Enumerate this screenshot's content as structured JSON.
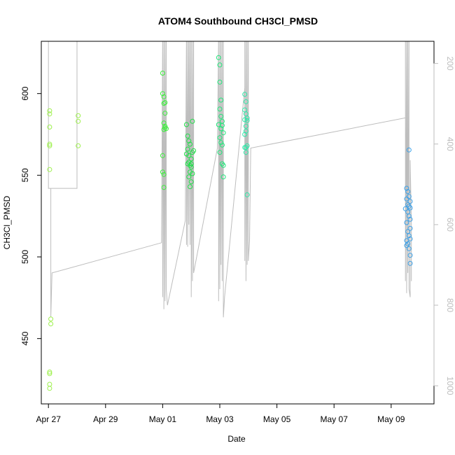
{
  "chart_data": {
    "type": "scatter",
    "title": "ATOM4 Southbound CH3Cl_PMSD",
    "xlabel": "Date",
    "ylabel": "CH3Cl_PMSD",
    "x_is_date": true,
    "xlim": [
      "2018-04-26T18:00",
      "2018-05-10T12:00"
    ],
    "ylim": [
      410,
      632
    ],
    "y_ticks": [
      450,
      500,
      550,
      600
    ],
    "x_ticks": [
      {
        "date": "2018-04-27",
        "label": "Apr 27"
      },
      {
        "date": "2018-04-29",
        "label": "Apr 29"
      },
      {
        "date": "2018-05-01",
        "label": "May 01"
      },
      {
        "date": "2018-05-03",
        "label": "May 03"
      },
      {
        "date": "2018-05-05",
        "label": "May 05"
      },
      {
        "date": "2018-05-07",
        "label": "May 07"
      },
      {
        "date": "2018-05-09",
        "label": "May 09"
      }
    ],
    "secondary_axis": {
      "side": "right",
      "color": "#bdbdbd",
      "reversed": true,
      "lim": [
        1045,
        145
      ],
      "ticks": [
        200,
        400,
        600,
        800,
        1000
      ]
    },
    "grid": false,
    "legend": "none",
    "series": [
      {
        "color": "#9cf04a",
        "points": [
          [
            "2018-04-27T01:00",
            589.5
          ],
          [
            "2018-04-27T01:00",
            587.5
          ],
          [
            "2018-04-27T01:00",
            579.5
          ],
          [
            "2018-04-27T01:00",
            569
          ],
          [
            "2018-04-27T01:00",
            568
          ],
          [
            "2018-04-27T01:00",
            553.5
          ],
          [
            "2018-04-27T02:00",
            462
          ],
          [
            "2018-04-27T02:00",
            459
          ],
          [
            "2018-04-27T01:00",
            429.5
          ],
          [
            "2018-04-27T01:00",
            428.5
          ],
          [
            "2018-04-27T01:00",
            422
          ],
          [
            "2018-04-27T01:00",
            419.5
          ],
          [
            "2018-04-28T01:00",
            586.5
          ],
          [
            "2018-04-28T01:00",
            583
          ],
          [
            "2018-04-28T01:00",
            568
          ]
        ]
      },
      {
        "color": "#3cf03c",
        "points": [
          [
            "2018-05-01T00:00",
            612.5
          ],
          [
            "2018-05-01T00:00",
            600
          ],
          [
            "2018-05-01T01:00",
            598
          ],
          [
            "2018-05-01T01:00",
            594
          ],
          [
            "2018-05-01T02:00",
            594.5
          ],
          [
            "2018-05-01T02:00",
            588
          ],
          [
            "2018-05-01T01:00",
            582
          ],
          [
            "2018-05-01T02:00",
            580
          ],
          [
            "2018-05-01T02:00",
            579
          ],
          [
            "2018-05-01T01:00",
            578
          ],
          [
            "2018-05-01T03:00",
            578.5
          ],
          [
            "2018-05-01T00:00",
            562
          ],
          [
            "2018-05-01T00:00",
            552
          ],
          [
            "2018-05-01T01:00",
            550.5
          ],
          [
            "2018-05-01T01:00",
            542.5
          ]
        ]
      },
      {
        "color": "#1ee048",
        "points": [
          [
            "2018-05-01T20:00",
            581
          ],
          [
            "2018-05-01T21:00",
            574
          ],
          [
            "2018-05-01T22:00",
            571
          ],
          [
            "2018-05-01T23:00",
            569
          ],
          [
            "2018-05-01T21:00",
            566
          ],
          [
            "2018-05-01T20:00",
            563
          ],
          [
            "2018-05-01T22:00",
            562
          ],
          [
            "2018-05-02T00:00",
            560
          ],
          [
            "2018-05-01T22:00",
            558
          ],
          [
            "2018-05-01T21:00",
            557
          ],
          [
            "2018-05-01T23:00",
            556
          ],
          [
            "2018-05-02T00:00",
            555
          ],
          [
            "2018-05-01T23:00",
            552
          ],
          [
            "2018-05-02T01:00",
            551
          ],
          [
            "2018-05-01T22:00",
            549
          ],
          [
            "2018-05-02T00:00",
            546
          ],
          [
            "2018-05-01T23:00",
            543
          ],
          [
            "2018-05-02T01:00",
            583
          ],
          [
            "2018-05-02T02:00",
            565
          ],
          [
            "2018-05-02T01:00",
            564
          ],
          [
            "2018-05-02T00:00",
            557
          ]
        ]
      },
      {
        "color": "#1ee87a",
        "points": [
          [
            "2018-05-02T23:00",
            622
          ],
          [
            "2018-05-03T00:00",
            617.5
          ],
          [
            "2018-05-03T00:00",
            607
          ],
          [
            "2018-05-03T01:00",
            596
          ],
          [
            "2018-05-03T00:00",
            590.5
          ],
          [
            "2018-05-03T01:00",
            586
          ],
          [
            "2018-05-03T02:00",
            583
          ],
          [
            "2018-05-02T23:00",
            581
          ],
          [
            "2018-05-03T02:00",
            580.5
          ],
          [
            "2018-05-03T01:00",
            578.5
          ],
          [
            "2018-05-03T03:00",
            576
          ],
          [
            "2018-05-03T00:00",
            573
          ],
          [
            "2018-05-03T01:00",
            570
          ],
          [
            "2018-05-03T02:00",
            568.5
          ],
          [
            "2018-05-03T00:00",
            564
          ],
          [
            "2018-05-03T02:00",
            557
          ],
          [
            "2018-05-03T03:00",
            556
          ],
          [
            "2018-05-03T03:00",
            549
          ]
        ]
      },
      {
        "color": "#2ee8a8",
        "points": [
          [
            "2018-05-03T21:00",
            599.5
          ],
          [
            "2018-05-03T22:00",
            595
          ],
          [
            "2018-05-03T21:00",
            590
          ],
          [
            "2018-05-03T22:00",
            587.5
          ],
          [
            "2018-05-03T23:00",
            585
          ],
          [
            "2018-05-03T21:00",
            584
          ],
          [
            "2018-05-03T23:00",
            583.5
          ],
          [
            "2018-05-03T22:00",
            580
          ],
          [
            "2018-05-03T22:00",
            577
          ],
          [
            "2018-05-03T21:00",
            575
          ],
          [
            "2018-05-03T23:00",
            568
          ],
          [
            "2018-05-03T22:00",
            567
          ],
          [
            "2018-05-03T21:00",
            567
          ],
          [
            "2018-05-03T22:00",
            564
          ],
          [
            "2018-05-03T23:00",
            538
          ]
        ]
      },
      {
        "color": "#3aa0e8",
        "points": [
          [
            "2018-05-09T15:00",
            565.5
          ],
          [
            "2018-05-09T13:00",
            542
          ],
          [
            "2018-05-09T14:00",
            540
          ],
          [
            "2018-05-09T15:00",
            537
          ],
          [
            "2018-05-09T13:00",
            535.5
          ],
          [
            "2018-05-09T16:00",
            534
          ],
          [
            "2018-05-09T14:00",
            532
          ],
          [
            "2018-05-09T15:00",
            531
          ],
          [
            "2018-05-09T12:00",
            529.5
          ],
          [
            "2018-05-09T16:00",
            530
          ],
          [
            "2018-05-09T14:00",
            527.5
          ],
          [
            "2018-05-09T15:00",
            525
          ],
          [
            "2018-05-09T16:00",
            523
          ],
          [
            "2018-05-09T13:00",
            521
          ],
          [
            "2018-05-09T16:00",
            517.5
          ],
          [
            "2018-05-09T14:00",
            515.5
          ],
          [
            "2018-05-09T15:00",
            513
          ],
          [
            "2018-05-09T16:00",
            511
          ],
          [
            "2018-05-09T13:00",
            510
          ],
          [
            "2018-05-09T14:00",
            508
          ],
          [
            "2018-05-09T13:00",
            507
          ],
          [
            "2018-05-09T15:00",
            505
          ],
          [
            "2018-05-09T16:00",
            501
          ],
          [
            "2018-05-09T16:00",
            496
          ]
        ]
      }
    ],
    "secondary_line": {
      "color": "#bdbdbd",
      "points": [
        [
          "2018-04-27T00:00",
          130
        ],
        [
          "2018-04-27T00:00",
          510
        ],
        [
          "2018-04-28T00:00",
          510
        ],
        [
          "2018-04-28T00:00",
          130
        ],
        [
          "2018-04-28T00:00",
          510
        ],
        [
          "2018-04-27T02:00",
          510
        ],
        [
          "2018-04-27T02:00",
          750
        ],
        [
          "2018-04-27T02:00",
          830
        ],
        [
          "2018-04-27T03:00",
          720
        ],
        [
          "2018-04-30T23:00",
          645
        ],
        [
          "2018-05-01T00:00",
          130
        ],
        [
          "2018-05-01T00:00",
          780
        ],
        [
          "2018-05-01T01:00",
          130
        ],
        [
          "2018-05-01T01:00",
          810
        ],
        [
          "2018-05-01T02:00",
          130
        ],
        [
          "2018-05-01T02:00",
          790
        ],
        [
          "2018-05-01T03:00",
          130
        ],
        [
          "2018-05-01T03:00",
          760
        ],
        [
          "2018-05-01T04:00",
          800
        ],
        [
          "2018-05-01T19:00",
          590
        ],
        [
          "2018-05-01T20:00",
          130
        ],
        [
          "2018-05-01T20:00",
          650
        ],
        [
          "2018-05-01T21:00",
          130
        ],
        [
          "2018-05-01T21:00",
          655
        ],
        [
          "2018-05-01T22:00",
          130
        ],
        [
          "2018-05-01T22:00",
          600
        ],
        [
          "2018-05-01T23:00",
          130
        ],
        [
          "2018-05-01T23:00",
          650
        ],
        [
          "2018-05-02T00:00",
          130
        ],
        [
          "2018-05-02T00:00",
          780
        ],
        [
          "2018-05-02T01:00",
          130
        ],
        [
          "2018-05-02T01:00",
          740
        ],
        [
          "2018-05-02T02:00",
          130
        ],
        [
          "2018-05-02T02:00",
          720
        ],
        [
          "2018-05-02T22:00",
          410
        ],
        [
          "2018-05-02T23:00",
          130
        ],
        [
          "2018-05-02T23:00",
          790
        ],
        [
          "2018-05-03T00:00",
          130
        ],
        [
          "2018-05-03T00:00",
          760
        ],
        [
          "2018-05-03T01:00",
          130
        ],
        [
          "2018-05-03T01:00",
          700
        ],
        [
          "2018-05-03T02:00",
          130
        ],
        [
          "2018-05-03T02:00",
          740
        ],
        [
          "2018-05-03T03:00",
          130
        ],
        [
          "2018-05-03T03:00",
          830
        ],
        [
          "2018-05-03T04:00",
          780
        ],
        [
          "2018-05-03T21:00",
          260
        ],
        [
          "2018-05-03T21:00",
          130
        ],
        [
          "2018-05-03T21:00",
          690
        ],
        [
          "2018-05-03T22:00",
          130
        ],
        [
          "2018-05-03T22:00",
          740
        ],
        [
          "2018-05-03T23:00",
          130
        ],
        [
          "2018-05-03T23:00",
          700
        ],
        [
          "2018-05-04T00:00",
          130
        ],
        [
          "2018-05-04T00:00",
          690
        ],
        [
          "2018-05-04T01:00",
          640
        ],
        [
          "2018-05-04T02:00",
          410
        ],
        [
          "2018-05-09T12:00",
          335
        ],
        [
          "2018-05-09T12:00",
          130
        ],
        [
          "2018-05-09T12:00",
          740
        ],
        [
          "2018-05-09T13:00",
          130
        ],
        [
          "2018-05-09T13:00",
          770
        ],
        [
          "2018-05-09T14:00",
          130
        ],
        [
          "2018-05-09T14:00",
          720
        ],
        [
          "2018-05-09T15:00",
          130
        ],
        [
          "2018-05-09T15:00",
          760
        ],
        [
          "2018-05-09T16:00",
          780
        ],
        [
          "2018-05-09T16:00",
          440
        ],
        [
          "2018-05-09T17:00",
          600
        ],
        [
          "2018-05-09T17:00",
          740
        ]
      ]
    }
  }
}
